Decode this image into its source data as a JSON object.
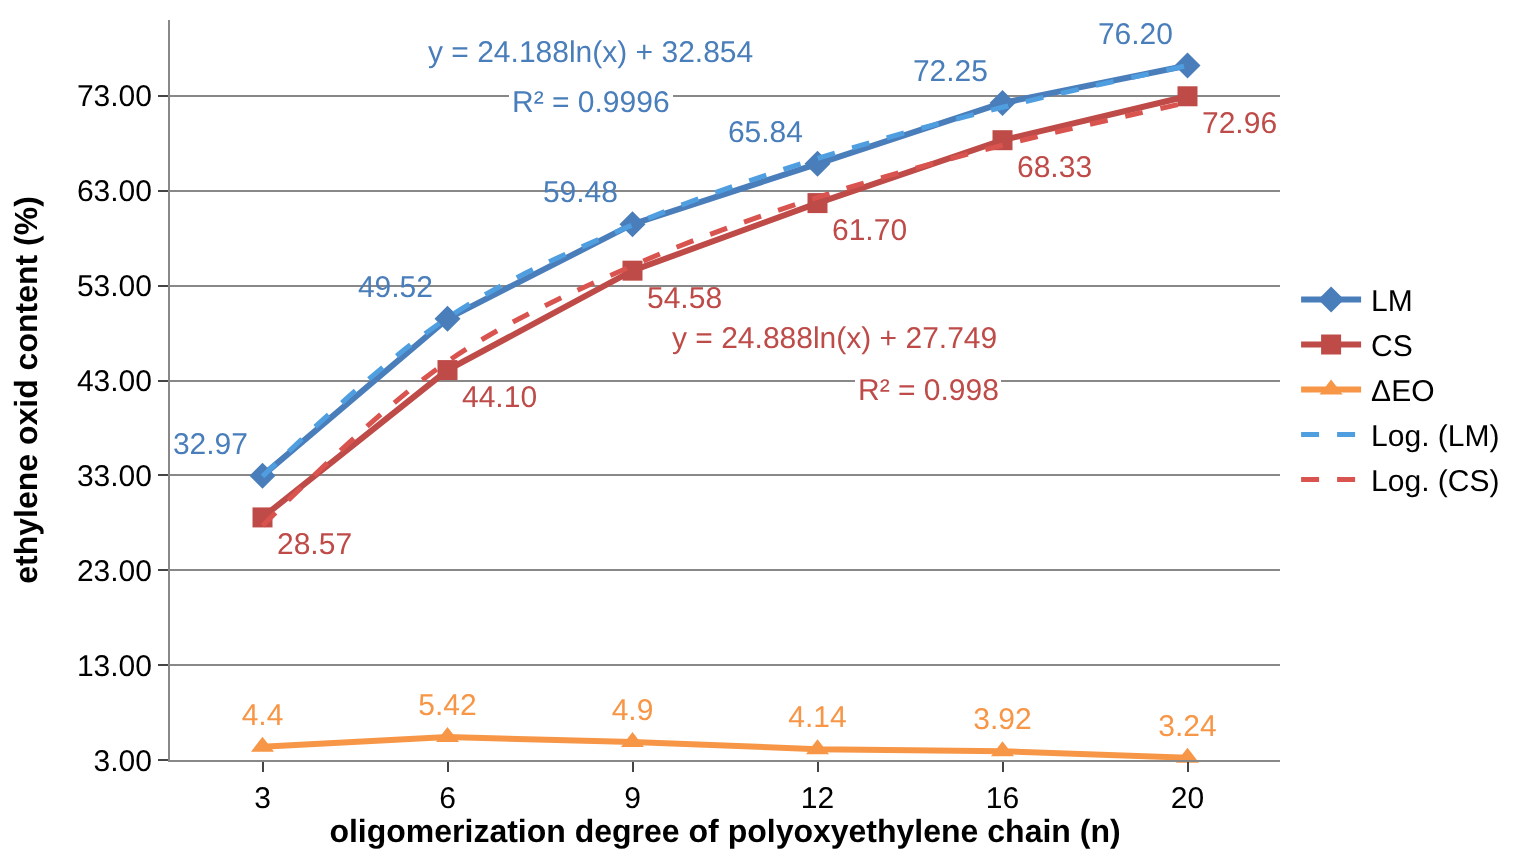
{
  "chart_data": {
    "type": "line",
    "xlabel": "oligomerization degree of polyoxyethylene chain (n)",
    "ylabel": "ethylene oxid content (%)",
    "categories": [
      "3",
      "6",
      "9",
      "12",
      "16",
      "20"
    ],
    "series": [
      {
        "name": "LM",
        "color": "#4a7ebb",
        "marker": "diamond",
        "values": [
          32.97,
          49.52,
          59.48,
          65.84,
          72.25,
          76.2
        ],
        "value_labels": [
          "32.97",
          "49.52",
          "59.48",
          "65.84",
          "72.25",
          "76.20"
        ]
      },
      {
        "name": "CS",
        "color": "#be4b48",
        "marker": "square",
        "values": [
          28.57,
          44.1,
          54.58,
          61.7,
          68.33,
          72.96
        ],
        "value_labels": [
          "28.57",
          "44.10",
          "54.58",
          "61.70",
          "68.33",
          "72.96"
        ]
      },
      {
        "name": "ΔEO",
        "color": "#f79646",
        "marker": "triangle",
        "values": [
          4.4,
          5.42,
          4.9,
          4.14,
          3.92,
          3.24
        ],
        "value_labels": [
          "4.4",
          "5.42",
          "4.9",
          "4.14",
          "3.92",
          "3.24"
        ]
      },
      {
        "name": "Log. (LM)",
        "color": "#4f9ee0",
        "marker": "none",
        "line_style": "dashed",
        "values": [
          32.9,
          49.6,
          59.4,
          66.4,
          71.8,
          76.2
        ]
      },
      {
        "name": "Log. (CS)",
        "color": "#d9534f",
        "marker": "none",
        "line_style": "dashed",
        "values": [
          27.7,
          45.0,
          55.1,
          62.3,
          67.8,
          72.3
        ]
      }
    ],
    "annotations": [
      "y = 24.188ln(x) + 32.854",
      "R² = 0.9996",
      "y = 24.888ln(x) + 27.749",
      "R² = 0.998"
    ],
    "ylim": [
      3,
      81
    ],
    "yticks": [
      {
        "value": 3,
        "label": "3.00"
      },
      {
        "value": 13,
        "label": "13.00"
      },
      {
        "value": 23,
        "label": "23.00"
      },
      {
        "value": 33,
        "label": "33.00"
      },
      {
        "value": 43,
        "label": "43.00"
      },
      {
        "value": 53,
        "label": "53.00"
      },
      {
        "value": 63,
        "label": "63.00"
      },
      {
        "value": 73,
        "label": "73.00"
      }
    ],
    "grid": "y",
    "legend": "right"
  }
}
